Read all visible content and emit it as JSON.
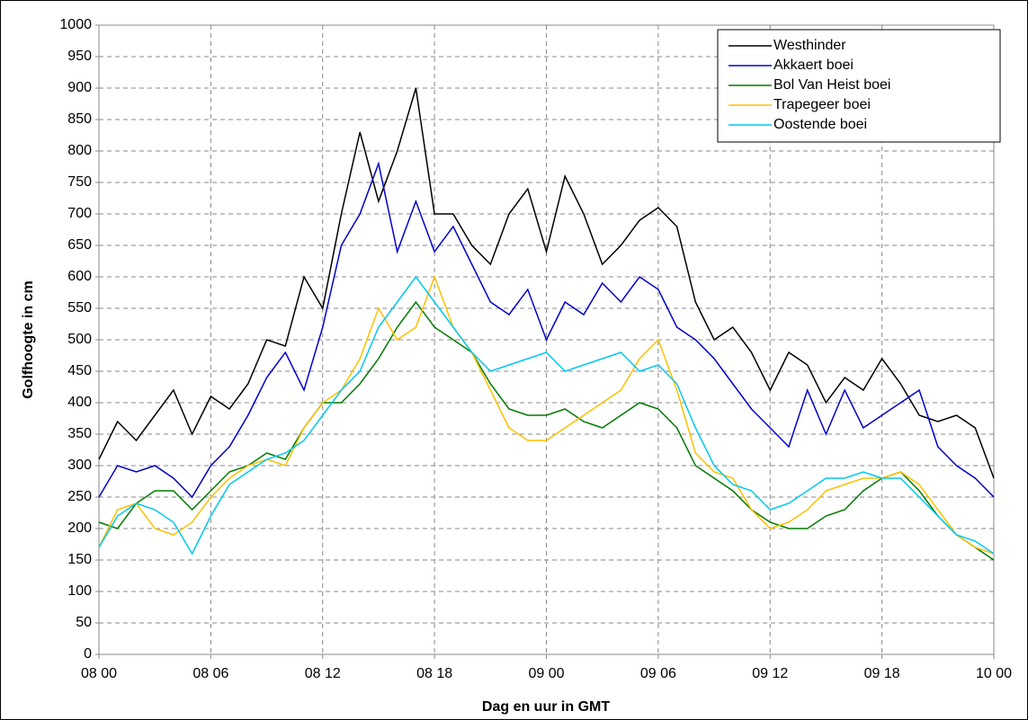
{
  "chart_data": {
    "type": "line",
    "x_label": "Dag en uur in GMT",
    "y_label": "Golfhoogte in cm",
    "x": [
      0,
      1,
      2,
      3,
      4,
      5,
      6,
      7,
      8,
      9,
      10,
      11,
      12,
      13,
      14,
      15,
      16,
      17,
      18,
      19,
      20,
      21,
      22,
      23,
      24,
      25,
      26,
      27,
      28,
      29,
      30,
      31,
      32,
      33,
      34,
      35,
      36,
      37,
      38,
      39,
      40,
      41,
      42,
      43,
      44,
      45,
      46,
      47,
      48
    ],
    "xlim": [
      0,
      48
    ],
    "xticks": [
      {
        "value": 0,
        "label": "08 00"
      },
      {
        "value": 6,
        "label": "08 06"
      },
      {
        "value": 12,
        "label": "08 12"
      },
      {
        "value": 18,
        "label": "08 18"
      },
      {
        "value": 24,
        "label": "09 00"
      },
      {
        "value": 30,
        "label": "09 06"
      },
      {
        "value": 36,
        "label": "09 12"
      },
      {
        "value": 42,
        "label": "09 18"
      },
      {
        "value": 48,
        "label": "10 00"
      }
    ],
    "ylim": [
      0,
      1000
    ],
    "yticks": [
      0,
      50,
      100,
      150,
      200,
      250,
      300,
      350,
      400,
      450,
      500,
      550,
      600,
      650,
      700,
      750,
      800,
      850,
      900,
      950,
      1000
    ],
    "grid": true,
    "legend": "top-right",
    "series": [
      {
        "name": "Westhinder",
        "color": "#000000",
        "values": [
          310,
          370,
          340,
          380,
          420,
          350,
          410,
          390,
          430,
          500,
          490,
          600,
          550,
          700,
          830,
          720,
          800,
          900,
          700,
          700,
          650,
          620,
          700,
          740,
          640,
          760,
          700,
          620,
          650,
          690,
          710,
          680,
          560,
          500,
          520,
          480,
          420,
          480,
          460,
          400,
          440,
          420,
          470,
          430,
          380,
          370,
          380,
          360,
          280
        ]
      },
      {
        "name": "Akkaert boei",
        "color": "#0000cc",
        "values": [
          250,
          300,
          290,
          300,
          280,
          250,
          300,
          330,
          380,
          440,
          480,
          420,
          520,
          650,
          700,
          780,
          640,
          720,
          640,
          680,
          620,
          560,
          540,
          580,
          500,
          560,
          540,
          590,
          560,
          600,
          580,
          520,
          500,
          470,
          430,
          390,
          360,
          330,
          420,
          350,
          420,
          360,
          380,
          400,
          420,
          330,
          300,
          280,
          250
        ]
      },
      {
        "name": "Bol Van Heist boei",
        "color": "#007a00",
        "values": [
          210,
          200,
          240,
          260,
          260,
          230,
          260,
          290,
          300,
          320,
          310,
          360,
          400,
          400,
          430,
          470,
          520,
          560,
          520,
          500,
          480,
          430,
          390,
          380,
          380,
          390,
          370,
          360,
          380,
          400,
          390,
          360,
          300,
          280,
          260,
          230,
          210,
          200,
          200,
          220,
          230,
          260,
          280,
          290,
          260,
          220,
          190,
          170,
          150
        ]
      },
      {
        "name": "Trapegeer boei",
        "color": "#ffc000",
        "values": [
          170,
          230,
          240,
          200,
          190,
          210,
          250,
          280,
          300,
          310,
          300,
          360,
          400,
          420,
          470,
          550,
          500,
          520,
          600,
          520,
          480,
          420,
          360,
          340,
          340,
          360,
          380,
          400,
          420,
          470,
          500,
          420,
          320,
          290,
          280,
          230,
          200,
          210,
          230,
          260,
          270,
          280,
          280,
          290,
          270,
          230,
          190,
          170,
          160
        ]
      },
      {
        "name": "Oostende boei",
        "color": "#00c8f0",
        "values": [
          170,
          220,
          240,
          230,
          210,
          160,
          220,
          270,
          290,
          310,
          320,
          340,
          380,
          420,
          450,
          520,
          560,
          600,
          560,
          520,
          480,
          450,
          460,
          470,
          480,
          450,
          460,
          470,
          480,
          450,
          460,
          430,
          360,
          300,
          270,
          260,
          230,
          240,
          260,
          280,
          280,
          290,
          280,
          280,
          250,
          220,
          190,
          180,
          160
        ]
      }
    ]
  }
}
